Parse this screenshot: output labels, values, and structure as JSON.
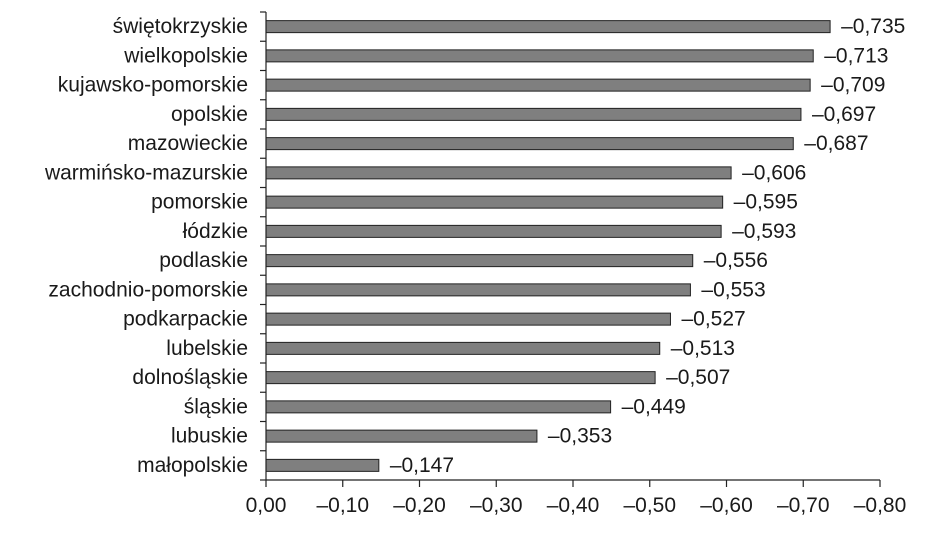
{
  "chart_data": {
    "type": "bar",
    "orientation": "horizontal",
    "title": "",
    "xlabel": "",
    "ylabel": "",
    "categories": [
      "świętokrzyskie",
      "wielkopolskie",
      "kujawsko-pomorskie",
      "opolskie",
      "mazowieckie",
      "warmińsko-mazurskie",
      "pomorskie",
      "łódzkie",
      "podlaskie",
      "zachodnio-pomorskie",
      "podkarpackie",
      "lubelskie",
      "dolnośląskie",
      "śląskie",
      "lubuskie",
      "małopolskie"
    ],
    "values": [
      -0.735,
      -0.713,
      -0.709,
      -0.697,
      -0.687,
      -0.606,
      -0.595,
      -0.593,
      -0.556,
      -0.553,
      -0.527,
      -0.513,
      -0.507,
      -0.449,
      -0.353,
      -0.147
    ],
    "value_labels": [
      "–0,735",
      "–0,713",
      "–0,709",
      "–0,697",
      "–0,687",
      "–0,606",
      "–0,595",
      "–0,593",
      "–0,556",
      "–0,553",
      "–0,527",
      "–0,513",
      "–0,507",
      "–0,449",
      "–0,353",
      "–0,147"
    ],
    "xlim": [
      0,
      -0.8
    ],
    "xticks": [
      0,
      -0.1,
      -0.2,
      -0.3,
      -0.4,
      -0.5,
      -0.6,
      -0.7,
      -0.8
    ],
    "xtick_labels": [
      "0,00",
      "–0,10",
      "–0,20",
      "–0,30",
      "–0,40",
      "–0,50",
      "–0,60",
      "–0,70",
      "–0,80"
    ],
    "grid": false,
    "legend": "none",
    "bar_color": "#7f7f7f",
    "bar_edge_color": "#222222"
  }
}
